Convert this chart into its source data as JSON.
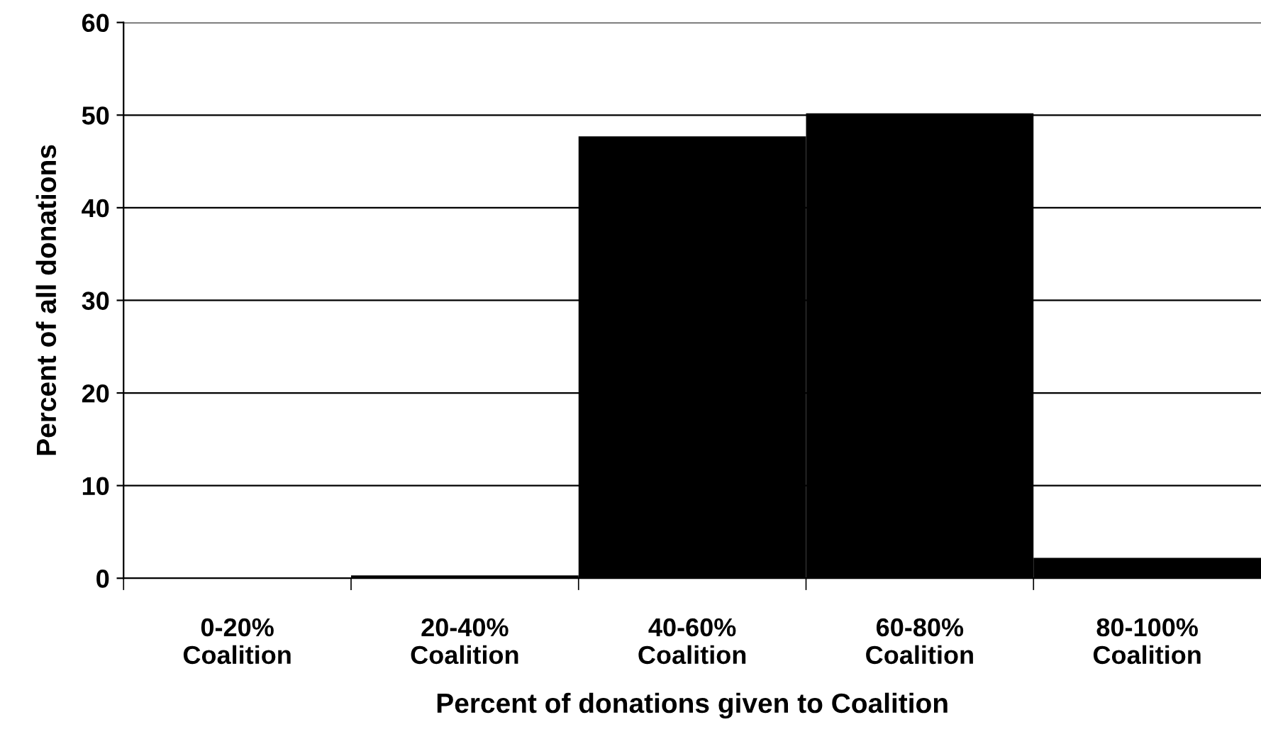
{
  "chart_data": {
    "type": "bar",
    "xlabel": "Percent of donations given to Coalition",
    "ylabel": "Percent of all donations",
    "categories": [
      "0-20%\nCoalition",
      "20-40%\nCoalition",
      "40-60%\nCoalition",
      "60-80%\nCoalition",
      "80-100%\nCoalition"
    ],
    "values": [
      0,
      0.3,
      47.7,
      50.2,
      2.2
    ],
    "color": "#000000",
    "ylim": [
      0,
      60
    ],
    "yticks": [
      0,
      10,
      20,
      30,
      40,
      50,
      60
    ],
    "grid": "y",
    "legend": false
  }
}
